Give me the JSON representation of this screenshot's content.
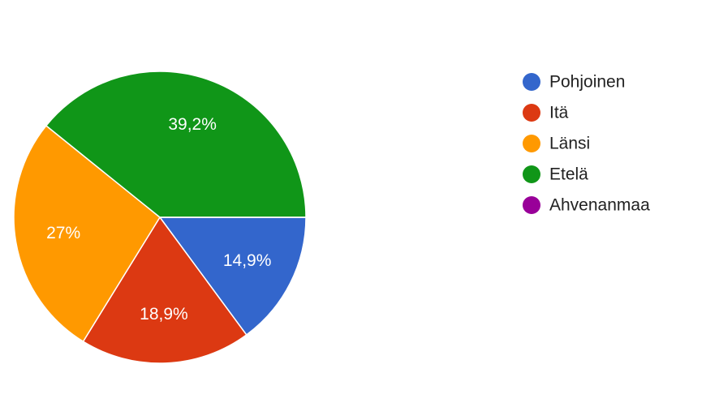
{
  "chart_data": {
    "type": "pie",
    "categories": [
      "Pohjoinen",
      "Itä",
      "Länsi",
      "Etelä",
      "Ahvenanmaa"
    ],
    "values": [
      14.9,
      18.9,
      27,
      39.2,
      0
    ],
    "value_labels": [
      "14,9%",
      "18,9%",
      "27%",
      "39,2%",
      null
    ],
    "colors": [
      "#3366cc",
      "#dc3912",
      "#ff9900",
      "#109618",
      "#990099"
    ],
    "legend": "right"
  }
}
